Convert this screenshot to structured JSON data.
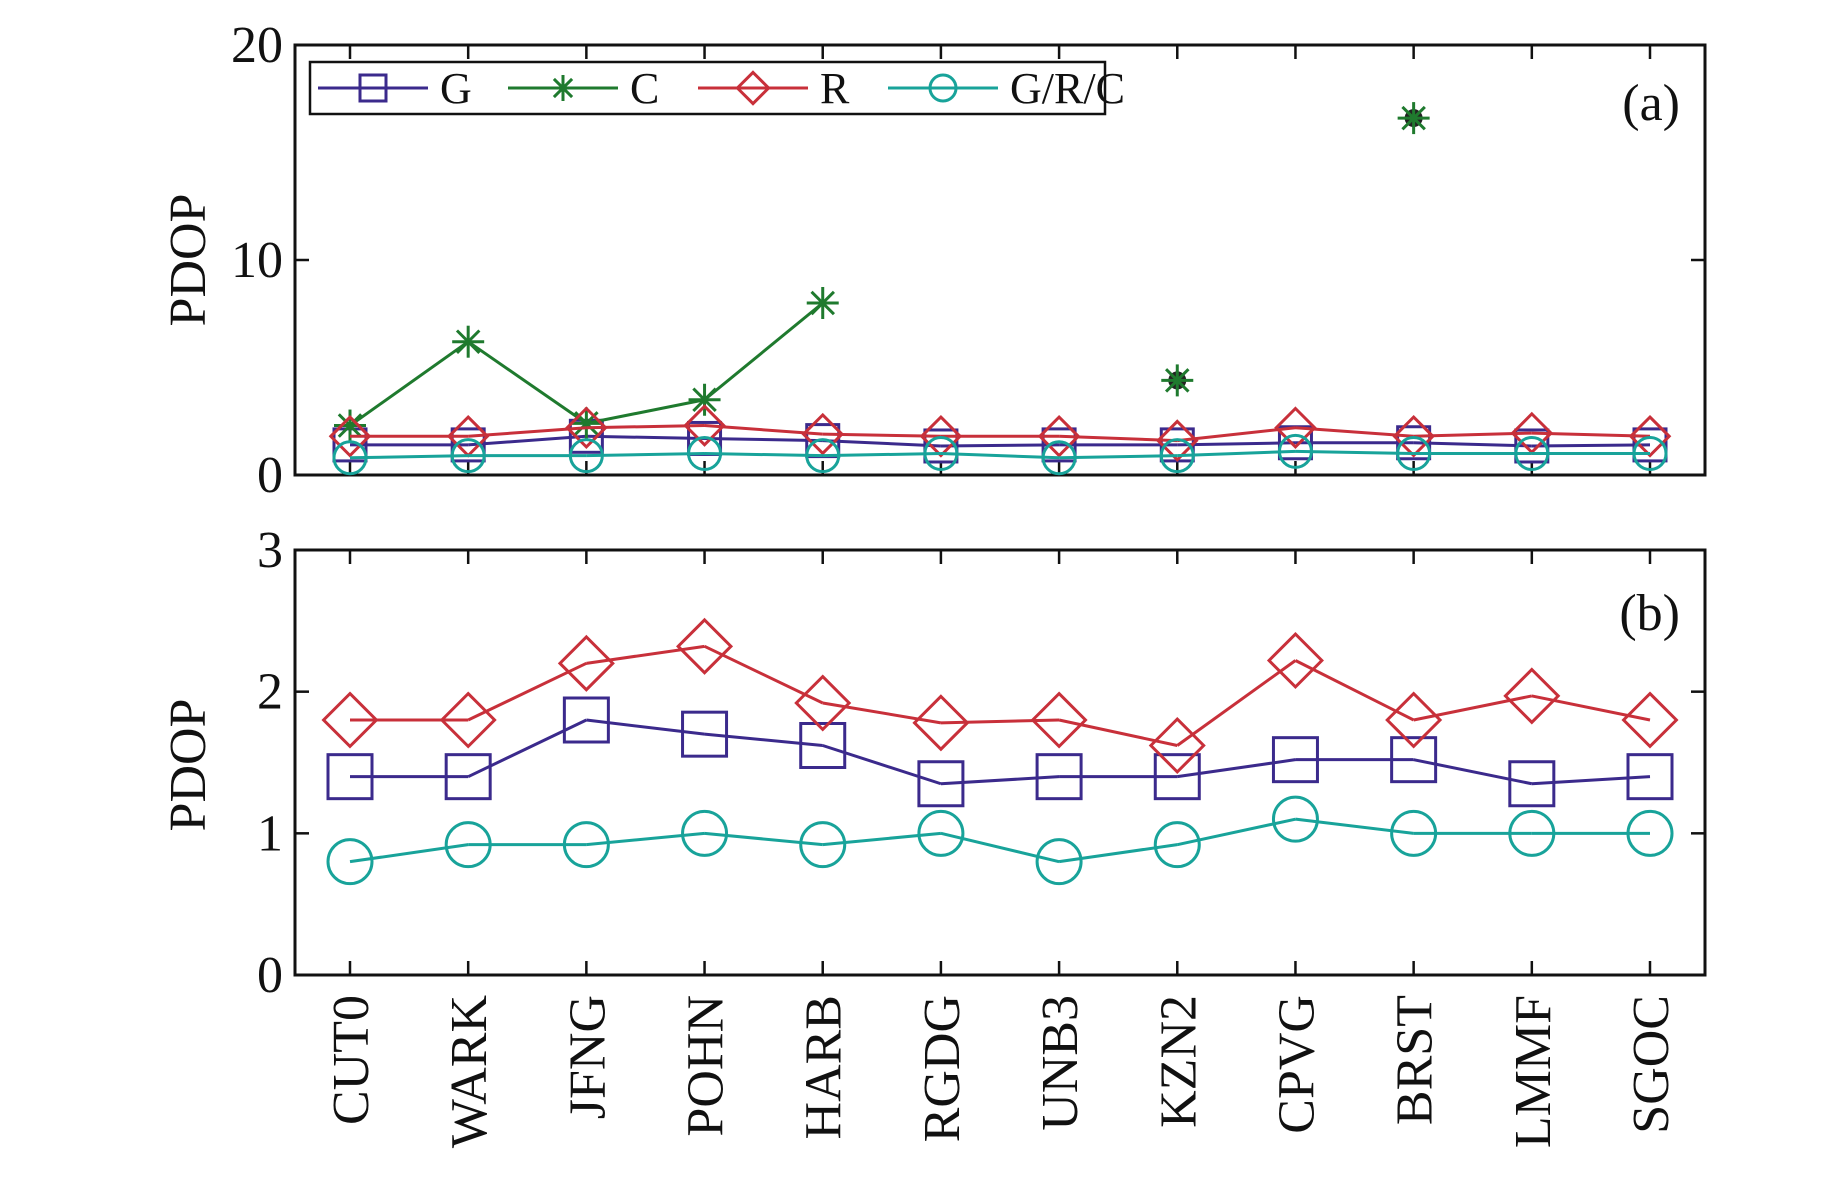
{
  "chart_data": [
    {
      "type": "line",
      "panel_label": "(a)",
      "ylabel": "PDOP",
      "xlabel": "",
      "ylim": [
        0,
        20
      ],
      "yticks": [
        "0",
        "10",
        "20"
      ],
      "yticks_values": [
        0,
        10,
        20
      ],
      "categories": [
        "CUT0",
        "WARK",
        "JFNG",
        "POHN",
        "HARB",
        "RGDG",
        "UNB3",
        "KZN2",
        "CPVG",
        "BRST",
        "LMMF",
        "SGOC"
      ],
      "legend_position": "top-left",
      "series": [
        {
          "name": "G",
          "color": "#3b2a8c",
          "marker": "square",
          "values": [
            1.4,
            1.4,
            1.8,
            1.7,
            1.6,
            1.35,
            1.4,
            1.4,
            1.5,
            1.5,
            1.35,
            1.4
          ]
        },
        {
          "name": "C",
          "color": "#1f7a2e",
          "marker": "star",
          "values": [
            2.3,
            6.2,
            2.4,
            3.5,
            8.0,
            null,
            null,
            4.4,
            null,
            16.6,
            null,
            null
          ]
        },
        {
          "name": "R",
          "color": "#c8303a",
          "marker": "diamond",
          "values": [
            1.8,
            1.8,
            2.2,
            2.3,
            1.9,
            1.8,
            1.8,
            1.6,
            2.2,
            1.8,
            1.95,
            1.8
          ]
        },
        {
          "name": "G/R/C",
          "color": "#18a39a",
          "marker": "circle",
          "values": [
            0.8,
            0.9,
            0.9,
            1.0,
            0.9,
            1.0,
            0.8,
            0.9,
            1.1,
            1.0,
            1.0,
            1.0
          ]
        }
      ]
    },
    {
      "type": "line",
      "panel_label": "(b)",
      "ylabel": "PDOP",
      "xlabel": "",
      "ylim": [
        0,
        3
      ],
      "yticks": [
        "0",
        "1",
        "2",
        "3"
      ],
      "yticks_values": [
        0,
        1,
        2,
        3
      ],
      "categories": [
        "CUT0",
        "WARK",
        "JFNG",
        "POHN",
        "HARB",
        "RGDG",
        "UNB3",
        "KZN2",
        "CPVG",
        "BRST",
        "LMMF",
        "SGOC"
      ],
      "series": [
        {
          "name": "G",
          "color": "#3b2a8c",
          "marker": "square",
          "values": [
            1.4,
            1.4,
            1.8,
            1.7,
            1.62,
            1.35,
            1.4,
            1.4,
            1.52,
            1.52,
            1.35,
            1.4
          ]
        },
        {
          "name": "R",
          "color": "#c8303a",
          "marker": "diamond",
          "values": [
            1.8,
            1.8,
            2.2,
            2.32,
            1.92,
            1.78,
            1.8,
            1.62,
            2.22,
            1.8,
            1.97,
            1.8
          ]
        },
        {
          "name": "G/R/C",
          "color": "#18a39a",
          "marker": "circle",
          "values": [
            0.8,
            0.92,
            0.92,
            1.0,
            0.92,
            1.0,
            0.8,
            0.92,
            1.1,
            1.0,
            1.0,
            1.0
          ]
        }
      ]
    }
  ],
  "colors": {
    "G": "#3b2a8c",
    "C": "#1f7a2e",
    "R": "#c8303a",
    "GRC": "#18a39a"
  }
}
